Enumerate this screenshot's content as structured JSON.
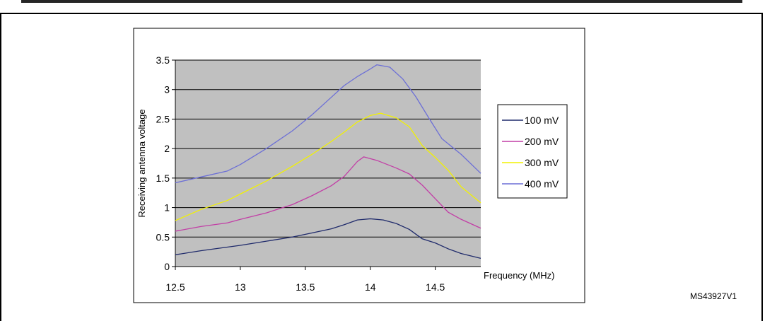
{
  "figure_id": "MS43927V1",
  "colors": {
    "plot_bg": "#c0c0c0",
    "grid": "#000000",
    "s100": "#1f2a6b",
    "s200": "#c23ea6",
    "s300": "#f2f200",
    "s400": "#6c6fd6"
  },
  "chart_data": {
    "type": "line",
    "xlabel": "Frequency (MHz)",
    "ylabel": "Receiving antenna voltage",
    "xlim": [
      12.5,
      14.85
    ],
    "ylim": [
      0,
      3.5
    ],
    "x_ticks": [
      "12.5",
      "13",
      "13.5",
      "14",
      "14.5"
    ],
    "y_ticks": [
      "0",
      "0.5",
      "1",
      "1.5",
      "2",
      "2.5",
      "3",
      "3.5"
    ],
    "legend_position": "right",
    "grid": true,
    "series": [
      {
        "name": "100 mV",
        "color": "#1f2a6b",
        "points": [
          [
            12.5,
            0.2
          ],
          [
            12.7,
            0.27
          ],
          [
            12.9,
            0.33
          ],
          [
            13.0,
            0.36
          ],
          [
            13.2,
            0.43
          ],
          [
            13.4,
            0.5
          ],
          [
            13.55,
            0.57
          ],
          [
            13.7,
            0.64
          ],
          [
            13.8,
            0.71
          ],
          [
            13.9,
            0.79
          ],
          [
            14.0,
            0.81
          ],
          [
            14.1,
            0.79
          ],
          [
            14.2,
            0.73
          ],
          [
            14.3,
            0.63
          ],
          [
            14.4,
            0.47
          ],
          [
            14.5,
            0.4
          ],
          [
            14.6,
            0.3
          ],
          [
            14.7,
            0.22
          ],
          [
            14.85,
            0.14
          ]
        ]
      },
      {
        "name": "200 mV",
        "color": "#c23ea6",
        "points": [
          [
            12.5,
            0.6
          ],
          [
            12.7,
            0.68
          ],
          [
            12.9,
            0.74
          ],
          [
            13.0,
            0.8
          ],
          [
            13.2,
            0.91
          ],
          [
            13.4,
            1.05
          ],
          [
            13.55,
            1.2
          ],
          [
            13.7,
            1.37
          ],
          [
            13.8,
            1.53
          ],
          [
            13.9,
            1.78
          ],
          [
            13.95,
            1.86
          ],
          [
            14.05,
            1.8
          ],
          [
            14.2,
            1.67
          ],
          [
            14.3,
            1.57
          ],
          [
            14.4,
            1.38
          ],
          [
            14.5,
            1.15
          ],
          [
            14.6,
            0.92
          ],
          [
            14.7,
            0.8
          ],
          [
            14.85,
            0.65
          ]
        ]
      },
      {
        "name": "300 mV",
        "color": "#f2f200",
        "points": [
          [
            12.5,
            0.78
          ],
          [
            12.7,
            0.97
          ],
          [
            12.9,
            1.12
          ],
          [
            13.0,
            1.23
          ],
          [
            13.2,
            1.45
          ],
          [
            13.4,
            1.7
          ],
          [
            13.55,
            1.9
          ],
          [
            13.7,
            2.12
          ],
          [
            13.8,
            2.28
          ],
          [
            13.9,
            2.45
          ],
          [
            14.0,
            2.56
          ],
          [
            14.08,
            2.6
          ],
          [
            14.2,
            2.52
          ],
          [
            14.3,
            2.37
          ],
          [
            14.4,
            2.05
          ],
          [
            14.5,
            1.85
          ],
          [
            14.6,
            1.63
          ],
          [
            14.7,
            1.35
          ],
          [
            14.85,
            1.08
          ]
        ]
      },
      {
        "name": "400 mV",
        "color": "#6c6fd6",
        "points": [
          [
            12.5,
            1.42
          ],
          [
            12.7,
            1.52
          ],
          [
            12.9,
            1.62
          ],
          [
            13.0,
            1.73
          ],
          [
            13.2,
            2.0
          ],
          [
            13.4,
            2.3
          ],
          [
            13.55,
            2.57
          ],
          [
            13.7,
            2.87
          ],
          [
            13.8,
            3.07
          ],
          [
            13.9,
            3.22
          ],
          [
            14.0,
            3.35
          ],
          [
            14.05,
            3.42
          ],
          [
            14.15,
            3.38
          ],
          [
            14.25,
            3.18
          ],
          [
            14.35,
            2.88
          ],
          [
            14.45,
            2.52
          ],
          [
            14.55,
            2.17
          ],
          [
            14.7,
            1.9
          ],
          [
            14.85,
            1.58
          ]
        ]
      }
    ]
  }
}
